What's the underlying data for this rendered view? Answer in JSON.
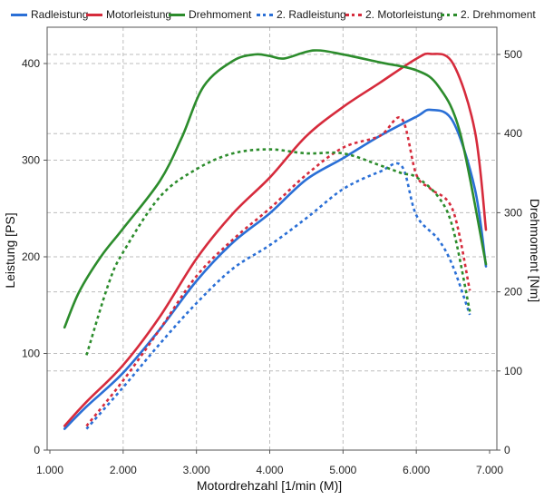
{
  "colors": {
    "blue": "#2a6fd6",
    "red": "#d62b3c",
    "green": "#2c8c2c",
    "grid": "#bdbdbd",
    "axis": "#555555"
  },
  "chart_data": {
    "type": "line",
    "xlabel": "Motordrehzahl [1/min (M)]",
    "ylabel_left": "Leistung [PS]",
    "ylabel_right": "Drehmoment [Nm]",
    "xlim": [
      1000,
      7000
    ],
    "ylim_left": [
      0,
      420
    ],
    "ylim_right": [
      0,
      520
    ],
    "x_ticks": [
      "1.000",
      "2.000",
      "3.000",
      "4.000",
      "5.000",
      "6.000",
      "7.000"
    ],
    "y_left_ticks": [
      "0",
      "100",
      "200",
      "300",
      "400"
    ],
    "y_right_ticks": [
      "0",
      "100",
      "200",
      "300",
      "400",
      "500"
    ],
    "grid": true,
    "legend_position": "top",
    "series": [
      {
        "name": "Radleistung",
        "axis": "left",
        "style": "solid",
        "color": "#2a6fd6",
        "x": [
          1200,
          1500,
          2000,
          2500,
          3000,
          3500,
          4000,
          4500,
          5000,
          5500,
          6000,
          6200,
          6500,
          6800,
          6950
        ],
        "y": [
          22,
          45,
          80,
          125,
          175,
          215,
          245,
          280,
          302,
          325,
          345,
          352,
          340,
          270,
          190
        ]
      },
      {
        "name": "Motorleistung",
        "axis": "left",
        "style": "solid",
        "color": "#d62b3c",
        "x": [
          1200,
          1500,
          2000,
          2500,
          3000,
          3500,
          4000,
          4500,
          5000,
          5500,
          6000,
          6200,
          6500,
          6800,
          6950
        ],
        "y": [
          25,
          50,
          88,
          138,
          198,
          245,
          282,
          325,
          355,
          380,
          405,
          410,
          400,
          330,
          228
        ]
      },
      {
        "name": "Drehmoment",
        "axis": "right",
        "style": "solid",
        "color": "#2c8c2c",
        "x": [
          1200,
          1400,
          1700,
          2000,
          2500,
          2800,
          3100,
          3500,
          3800,
          4000,
          4200,
          4600,
          5000,
          5500,
          6000,
          6300,
          6600,
          6950
        ],
        "y": [
          155,
          200,
          245,
          280,
          340,
          395,
          460,
          492,
          500,
          498,
          495,
          505,
          500,
          490,
          480,
          460,
          400,
          235
        ]
      },
      {
        "name": "2. Radleistung",
        "axis": "left",
        "style": "dashed",
        "color": "#2a6fd6",
        "x": [
          1500,
          2000,
          2500,
          3000,
          3500,
          4000,
          4500,
          5000,
          5500,
          5800,
          6000,
          6300,
          6500,
          6730
        ],
        "y": [
          22,
          65,
          110,
          152,
          188,
          212,
          240,
          270,
          288,
          294,
          243,
          218,
          190,
          140
        ]
      },
      {
        "name": "2. Motorleistung",
        "axis": "left",
        "style": "dashed",
        "color": "#d62b3c",
        "x": [
          1500,
          2000,
          2500,
          3000,
          3500,
          4000,
          4500,
          5000,
          5500,
          5800,
          6000,
          6200,
          6500,
          6730
        ],
        "y": [
          25,
          72,
          125,
          180,
          218,
          250,
          285,
          313,
          325,
          343,
          285,
          270,
          248,
          165
        ]
      },
      {
        "name": "2. Drehmoment",
        "axis": "right",
        "style": "dashed",
        "color": "#2c8c2c",
        "x": [
          1500,
          1800,
          2000,
          2500,
          3000,
          3500,
          4000,
          4500,
          5000,
          5500,
          5800,
          6000,
          6300,
          6500,
          6730
        ],
        "y": [
          120,
          210,
          250,
          320,
          355,
          375,
          380,
          375,
          375,
          360,
          350,
          345,
          320,
          280,
          175
        ]
      }
    ]
  }
}
